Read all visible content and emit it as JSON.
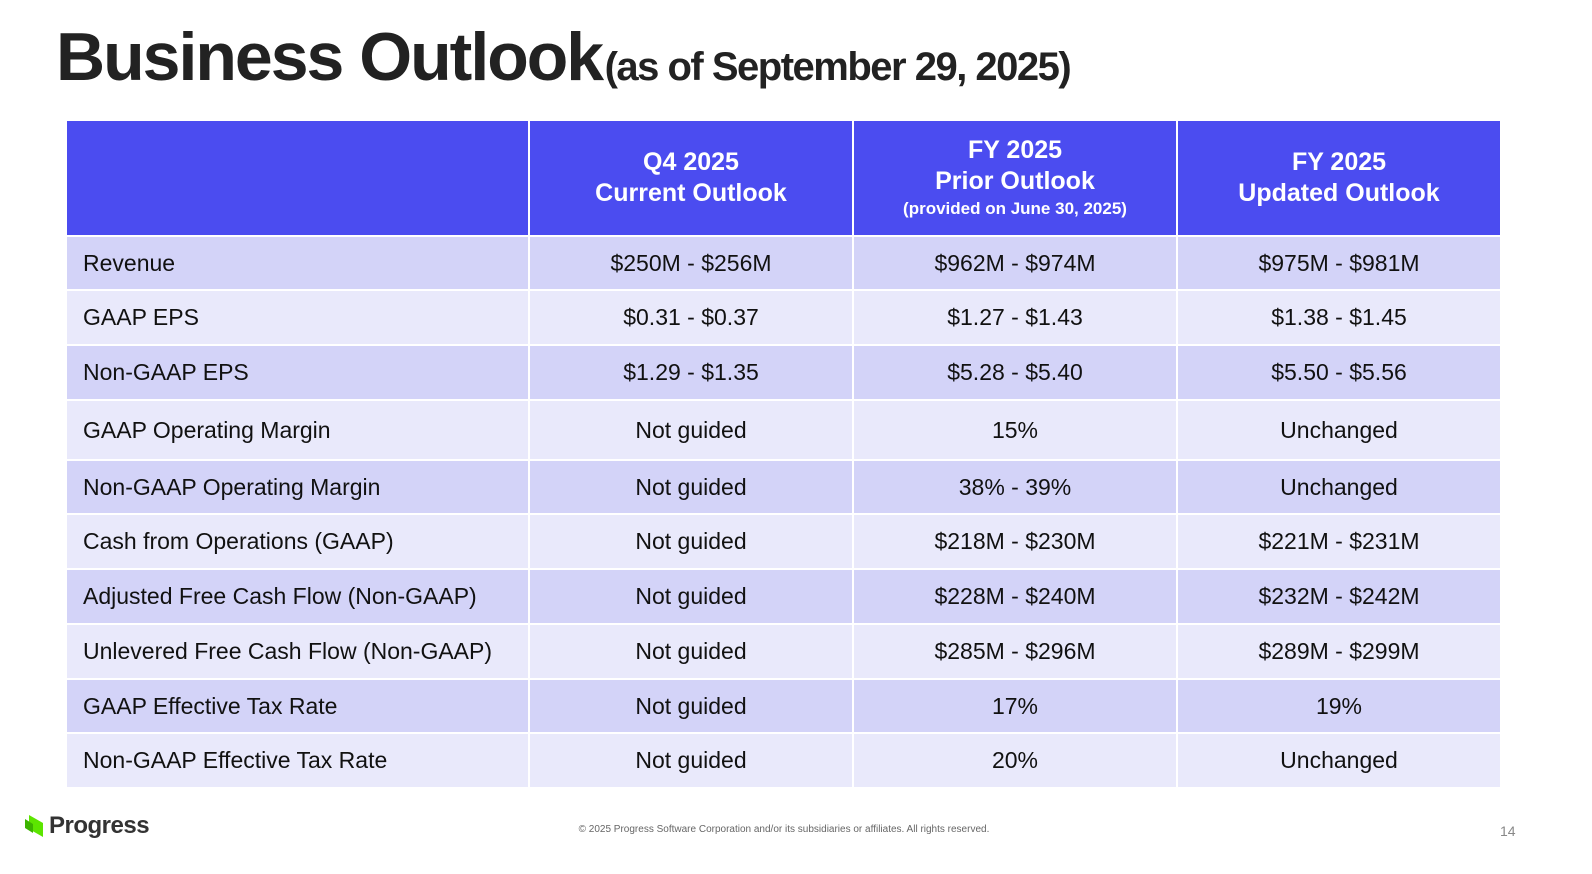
{
  "header": {
    "title": "Business Outlook",
    "subtitle": "(as of September 29, 2025)"
  },
  "table": {
    "columns": [
      [],
      [
        "Q4 2025",
        "Current Outlook"
      ],
      [
        "FY 2025",
        "Prior Outlook",
        "(provided on June 30, 2025)"
      ],
      [
        "FY 2025",
        "Updated Outlook"
      ]
    ],
    "rows": [
      [
        "Revenue",
        "$250M - $256M",
        "$962M - $974M",
        "$975M - $981M"
      ],
      [
        "GAAP EPS",
        "$0.31 - $0.37",
        "$1.27 - $1.43",
        "$1.38 - $1.45"
      ],
      [
        "Non-GAAP EPS",
        "$1.29 - $1.35",
        "$5.28 - $5.40",
        "$5.50 - $5.56"
      ],
      [
        "GAAP Operating Margin",
        "Not guided",
        "15%",
        "Unchanged"
      ],
      [
        "Non-GAAP Operating Margin",
        "Not guided",
        "38% - 39%",
        "Unchanged"
      ],
      [
        "Cash from Operations (GAAP)",
        "Not guided",
        "$218M - $230M",
        "$221M - $231M"
      ],
      [
        "Adjusted Free Cash Flow (Non-GAAP)",
        "Not guided",
        "$228M - $240M",
        "$232M - $242M"
      ],
      [
        "Unlevered Free Cash Flow (Non-GAAP)",
        "Not guided",
        "$285M - $296M",
        "$289M - $299M"
      ],
      [
        "GAAP Effective Tax Rate",
        "Not guided",
        "17%",
        "19%"
      ],
      [
        "Non-GAAP Effective Tax Rate",
        "Not guided",
        "20%",
        "Unchanged"
      ]
    ]
  },
  "footer": {
    "logo": "Progress",
    "copyright": "© 2025 Progress Software Corporation and/or its subsidiaries or affiliates. All rights reserved.",
    "page": "14"
  }
}
